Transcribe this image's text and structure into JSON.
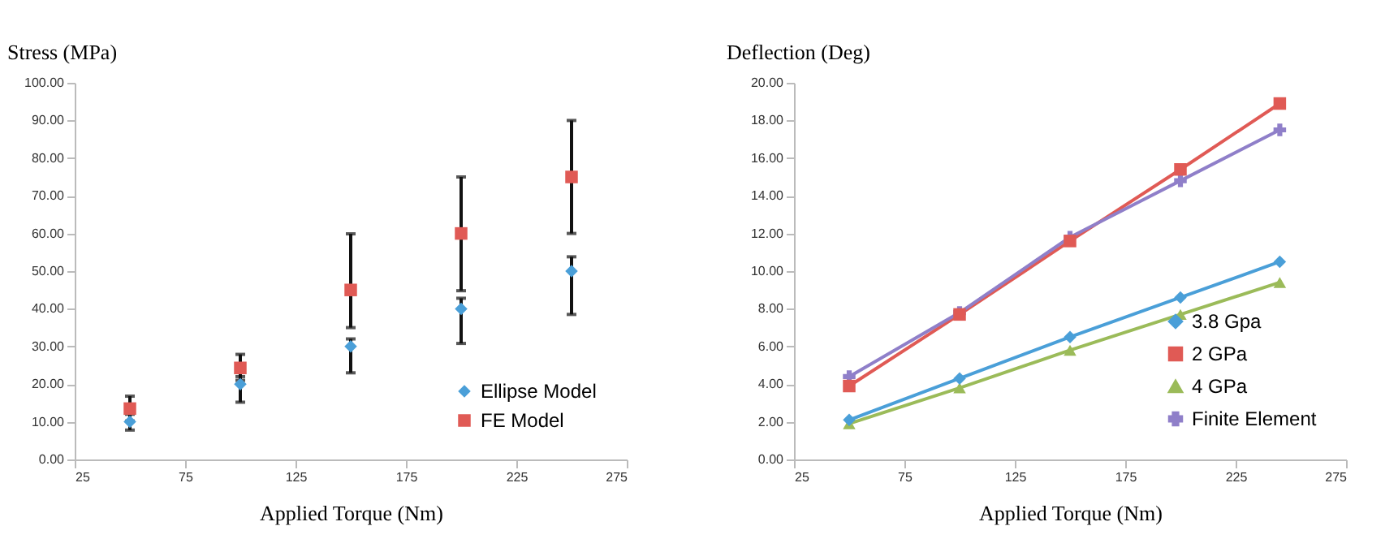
{
  "chart_data": [
    {
      "type": "scatter",
      "xlabel": "Applied Torque (Nm)",
      "ylabel": "Stress (MPa)",
      "x": [
        50,
        100,
        150,
        200,
        250
      ],
      "xlim": [
        25,
        275
      ],
      "xticks": [
        25,
        75,
        125,
        175,
        225,
        275
      ],
      "ylim": [
        0,
        100
      ],
      "yticks": [
        {
          "value": 0,
          "label": "0.00"
        },
        {
          "value": 10,
          "label": "10.00"
        },
        {
          "value": 20,
          "label": "20.00"
        },
        {
          "value": 30,
          "label": "30.00"
        },
        {
          "value": 40,
          "label": "40.00"
        },
        {
          "value": 50,
          "label": "50.00"
        },
        {
          "value": 60,
          "label": "60.00"
        },
        {
          "value": 70,
          "label": "70.00"
        },
        {
          "value": 80,
          "label": "80.00"
        },
        {
          "value": 90,
          "label": "90.00"
        },
        {
          "value": 100,
          "label": "100.00"
        }
      ],
      "legend": "bottom right",
      "grid": false,
      "series": [
        {
          "name": "Ellipse Model",
          "color": "#4a9fd8",
          "marker": "diamond",
          "values": [
            10,
            20,
            30,
            40,
            50
          ],
          "errors": [
            [
              7.8,
              12
            ],
            [
              15.2,
              22
            ],
            [
              23,
              32
            ],
            [
              30.8,
              42.8
            ],
            [
              38.5,
              53.8
            ]
          ]
        },
        {
          "name": "FE Model",
          "color": "#e05a55",
          "marker": "square",
          "values": [
            13.5,
            24.3,
            45,
            60,
            75
          ],
          "errors": [
            [
              10.2,
              16.8
            ],
            [
              21,
              27.9
            ],
            [
              35,
              59.9
            ],
            [
              44.8,
              75
            ],
            [
              60,
              90
            ]
          ]
        }
      ]
    },
    {
      "type": "line",
      "xlabel": "Applied Torque (Nm)",
      "ylabel": "Deflection (Deg)",
      "x": [
        50,
        100,
        150,
        200,
        245
      ],
      "xlim": [
        25,
        275
      ],
      "xticks": [
        25,
        75,
        125,
        175,
        225,
        275
      ],
      "ylim": [
        0,
        20
      ],
      "yticks": [
        {
          "value": 0,
          "label": "0.00"
        },
        {
          "value": 2,
          "label": "2.00"
        },
        {
          "value": 4,
          "label": "4.00"
        },
        {
          "value": 6,
          "label": "6.00"
        },
        {
          "value": 8,
          "label": "8.00"
        },
        {
          "value": 10,
          "label": "10.00"
        },
        {
          "value": 12,
          "label": "12.00"
        },
        {
          "value": 14,
          "label": "14.00"
        },
        {
          "value": 16,
          "label": "16.00"
        },
        {
          "value": 18,
          "label": "18.00"
        },
        {
          "value": 20,
          "label": "20.00"
        }
      ],
      "legend": "bottom right",
      "grid": false,
      "series": [
        {
          "name": "3.8 Gpa",
          "color": "#4a9fd8",
          "marker": "diamond",
          "values": [
            2.1,
            4.3,
            6.5,
            8.6,
            10.5
          ]
        },
        {
          "name": "2 GPa",
          "color": "#e05a55",
          "marker": "square",
          "values": [
            3.9,
            7.7,
            11.6,
            15.4,
            18.9
          ]
        },
        {
          "name": "4 GPa",
          "color": "#9bbb59",
          "marker": "triangle",
          "values": [
            1.9,
            3.8,
            5.8,
            7.7,
            9.4
          ]
        },
        {
          "name": "Finite Element",
          "color": "#8f7fc9",
          "marker": "cross",
          "values": [
            4.4,
            7.8,
            11.8,
            14.8,
            17.5
          ]
        }
      ]
    }
  ]
}
